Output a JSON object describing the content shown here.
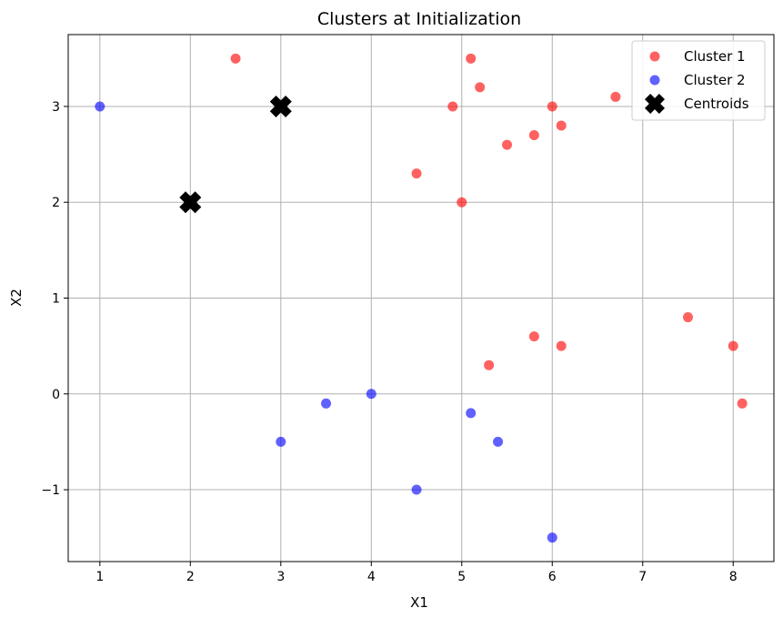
{
  "chart_data": {
    "type": "scatter",
    "title": "Clusters at Initialization",
    "xlabel": "X1",
    "ylabel": "X2",
    "xlim": [
      0.65,
      8.45
    ],
    "ylim": [
      -1.75,
      3.75
    ],
    "xticks": [
      1,
      2,
      3,
      4,
      5,
      6,
      7,
      8
    ],
    "yticks": [
      -1,
      0,
      1,
      2,
      3
    ],
    "grid": true,
    "legend_position": "top-right",
    "series": [
      {
        "name": "Cluster 1",
        "color": "#ff0000",
        "marker": "circle",
        "points": [
          [
            2.5,
            3.5
          ],
          [
            5.1,
            3.5
          ],
          [
            5.2,
            3.2
          ],
          [
            4.9,
            3.0
          ],
          [
            6.0,
            3.0
          ],
          [
            6.7,
            3.1
          ],
          [
            6.1,
            2.8
          ],
          [
            5.8,
            2.7
          ],
          [
            5.5,
            2.6
          ],
          [
            4.5,
            2.3
          ],
          [
            5.0,
            2.0
          ],
          [
            7.5,
            0.8
          ],
          [
            5.8,
            0.6
          ],
          [
            6.1,
            0.5
          ],
          [
            8.0,
            0.5
          ],
          [
            5.3,
            0.3
          ],
          [
            8.1,
            -0.1
          ]
        ]
      },
      {
        "name": "Cluster 2",
        "color": "#0000ff",
        "marker": "circle",
        "points": [
          [
            1.0,
            3.0
          ],
          [
            3.5,
            -0.1
          ],
          [
            4.0,
            0.0
          ],
          [
            3.0,
            -0.5
          ],
          [
            5.1,
            -0.2
          ],
          [
            5.4,
            -0.5
          ],
          [
            4.5,
            -1.0
          ],
          [
            6.0,
            -1.5
          ]
        ]
      },
      {
        "name": "Centroids",
        "color": "#000000",
        "marker": "x",
        "points": [
          [
            2.0,
            2.0
          ],
          [
            3.0,
            3.0
          ]
        ]
      }
    ]
  }
}
